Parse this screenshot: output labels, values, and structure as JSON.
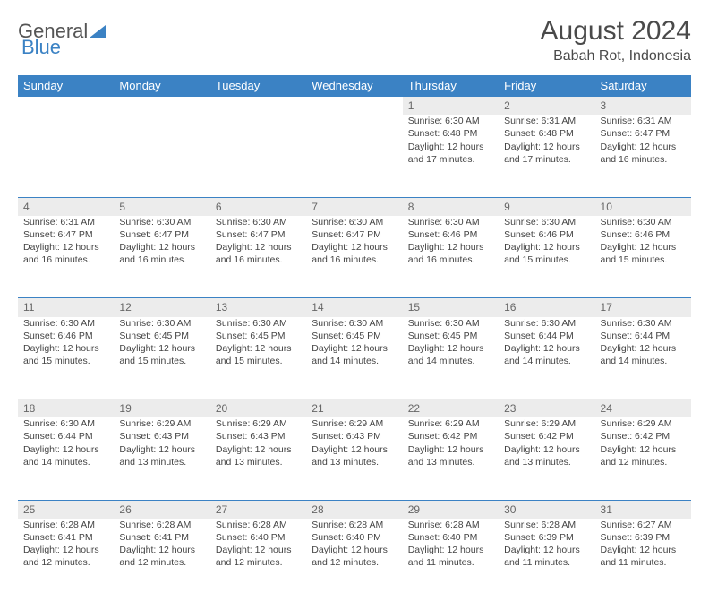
{
  "logo": {
    "word1": "General",
    "word2": "Blue"
  },
  "title": {
    "month": "August 2024",
    "location": "Babah Rot, Indonesia"
  },
  "colors": {
    "header_bg": "#3b82c4",
    "header_text": "#ffffff",
    "daynum_bg": "#ececec",
    "daynum_text": "#666666",
    "body_text": "#444444",
    "border": "#3b82c4",
    "page_bg": "#ffffff"
  },
  "typography": {
    "title_fontsize": 30,
    "location_fontsize": 16,
    "header_fontsize": 13,
    "daynum_fontsize": 12,
    "cell_fontsize": 10.5
  },
  "day_headers": [
    "Sunday",
    "Monday",
    "Tuesday",
    "Wednesday",
    "Thursday",
    "Friday",
    "Saturday"
  ],
  "weeks": [
    {
      "nums": [
        "",
        "",
        "",
        "",
        "1",
        "2",
        "3"
      ],
      "cells": [
        null,
        null,
        null,
        null,
        {
          "sunrise": "Sunrise: 6:30 AM",
          "sunset": "Sunset: 6:48 PM",
          "daylight": "Daylight: 12 hours and 17 minutes."
        },
        {
          "sunrise": "Sunrise: 6:31 AM",
          "sunset": "Sunset: 6:48 PM",
          "daylight": "Daylight: 12 hours and 17 minutes."
        },
        {
          "sunrise": "Sunrise: 6:31 AM",
          "sunset": "Sunset: 6:47 PM",
          "daylight": "Daylight: 12 hours and 16 minutes."
        }
      ]
    },
    {
      "nums": [
        "4",
        "5",
        "6",
        "7",
        "8",
        "9",
        "10"
      ],
      "cells": [
        {
          "sunrise": "Sunrise: 6:31 AM",
          "sunset": "Sunset: 6:47 PM",
          "daylight": "Daylight: 12 hours and 16 minutes."
        },
        {
          "sunrise": "Sunrise: 6:30 AM",
          "sunset": "Sunset: 6:47 PM",
          "daylight": "Daylight: 12 hours and 16 minutes."
        },
        {
          "sunrise": "Sunrise: 6:30 AM",
          "sunset": "Sunset: 6:47 PM",
          "daylight": "Daylight: 12 hours and 16 minutes."
        },
        {
          "sunrise": "Sunrise: 6:30 AM",
          "sunset": "Sunset: 6:47 PM",
          "daylight": "Daylight: 12 hours and 16 minutes."
        },
        {
          "sunrise": "Sunrise: 6:30 AM",
          "sunset": "Sunset: 6:46 PM",
          "daylight": "Daylight: 12 hours and 16 minutes."
        },
        {
          "sunrise": "Sunrise: 6:30 AM",
          "sunset": "Sunset: 6:46 PM",
          "daylight": "Daylight: 12 hours and 15 minutes."
        },
        {
          "sunrise": "Sunrise: 6:30 AM",
          "sunset": "Sunset: 6:46 PM",
          "daylight": "Daylight: 12 hours and 15 minutes."
        }
      ]
    },
    {
      "nums": [
        "11",
        "12",
        "13",
        "14",
        "15",
        "16",
        "17"
      ],
      "cells": [
        {
          "sunrise": "Sunrise: 6:30 AM",
          "sunset": "Sunset: 6:46 PM",
          "daylight": "Daylight: 12 hours and 15 minutes."
        },
        {
          "sunrise": "Sunrise: 6:30 AM",
          "sunset": "Sunset: 6:45 PM",
          "daylight": "Daylight: 12 hours and 15 minutes."
        },
        {
          "sunrise": "Sunrise: 6:30 AM",
          "sunset": "Sunset: 6:45 PM",
          "daylight": "Daylight: 12 hours and 15 minutes."
        },
        {
          "sunrise": "Sunrise: 6:30 AM",
          "sunset": "Sunset: 6:45 PM",
          "daylight": "Daylight: 12 hours and 14 minutes."
        },
        {
          "sunrise": "Sunrise: 6:30 AM",
          "sunset": "Sunset: 6:45 PM",
          "daylight": "Daylight: 12 hours and 14 minutes."
        },
        {
          "sunrise": "Sunrise: 6:30 AM",
          "sunset": "Sunset: 6:44 PM",
          "daylight": "Daylight: 12 hours and 14 minutes."
        },
        {
          "sunrise": "Sunrise: 6:30 AM",
          "sunset": "Sunset: 6:44 PM",
          "daylight": "Daylight: 12 hours and 14 minutes."
        }
      ]
    },
    {
      "nums": [
        "18",
        "19",
        "20",
        "21",
        "22",
        "23",
        "24"
      ],
      "cells": [
        {
          "sunrise": "Sunrise: 6:30 AM",
          "sunset": "Sunset: 6:44 PM",
          "daylight": "Daylight: 12 hours and 14 minutes."
        },
        {
          "sunrise": "Sunrise: 6:29 AM",
          "sunset": "Sunset: 6:43 PM",
          "daylight": "Daylight: 12 hours and 13 minutes."
        },
        {
          "sunrise": "Sunrise: 6:29 AM",
          "sunset": "Sunset: 6:43 PM",
          "daylight": "Daylight: 12 hours and 13 minutes."
        },
        {
          "sunrise": "Sunrise: 6:29 AM",
          "sunset": "Sunset: 6:43 PM",
          "daylight": "Daylight: 12 hours and 13 minutes."
        },
        {
          "sunrise": "Sunrise: 6:29 AM",
          "sunset": "Sunset: 6:42 PM",
          "daylight": "Daylight: 12 hours and 13 minutes."
        },
        {
          "sunrise": "Sunrise: 6:29 AM",
          "sunset": "Sunset: 6:42 PM",
          "daylight": "Daylight: 12 hours and 13 minutes."
        },
        {
          "sunrise": "Sunrise: 6:29 AM",
          "sunset": "Sunset: 6:42 PM",
          "daylight": "Daylight: 12 hours and 12 minutes."
        }
      ]
    },
    {
      "nums": [
        "25",
        "26",
        "27",
        "28",
        "29",
        "30",
        "31"
      ],
      "cells": [
        {
          "sunrise": "Sunrise: 6:28 AM",
          "sunset": "Sunset: 6:41 PM",
          "daylight": "Daylight: 12 hours and 12 minutes."
        },
        {
          "sunrise": "Sunrise: 6:28 AM",
          "sunset": "Sunset: 6:41 PM",
          "daylight": "Daylight: 12 hours and 12 minutes."
        },
        {
          "sunrise": "Sunrise: 6:28 AM",
          "sunset": "Sunset: 6:40 PM",
          "daylight": "Daylight: 12 hours and 12 minutes."
        },
        {
          "sunrise": "Sunrise: 6:28 AM",
          "sunset": "Sunset: 6:40 PM",
          "daylight": "Daylight: 12 hours and 12 minutes."
        },
        {
          "sunrise": "Sunrise: 6:28 AM",
          "sunset": "Sunset: 6:40 PM",
          "daylight": "Daylight: 12 hours and 11 minutes."
        },
        {
          "sunrise": "Sunrise: 6:28 AM",
          "sunset": "Sunset: 6:39 PM",
          "daylight": "Daylight: 12 hours and 11 minutes."
        },
        {
          "sunrise": "Sunrise: 6:27 AM",
          "sunset": "Sunset: 6:39 PM",
          "daylight": "Daylight: 12 hours and 11 minutes."
        }
      ]
    }
  ]
}
